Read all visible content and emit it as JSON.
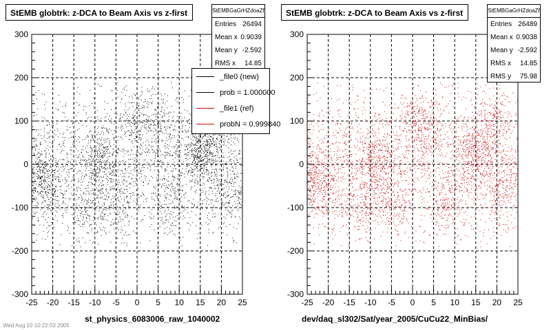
{
  "colors": {
    "ref": "#000000",
    "new": "#cc0000",
    "grid": "#000000",
    "frame": "#000000",
    "background": "#ffffff"
  },
  "panels": [
    {
      "title": "StEMB globtrk: z-DCA to Beam Axis vs z-first",
      "stats": {
        "name": "StEMBGaGrHZdoaZf",
        "rows": [
          {
            "label": "Entries",
            "value": "26494"
          },
          {
            "label": "Mean x",
            "value": "0.9039"
          },
          {
            "label": "Mean y",
            "value": "-2.592"
          },
          {
            "label": "RMS x",
            "value": "14.85"
          }
        ]
      },
      "legend": [
        {
          "label": "_file0 (new)",
          "color": "#000000"
        },
        {
          "label": "prob = 1.000000",
          "color": "#000000"
        },
        {
          "label": "_file1 (ref)",
          "color": "#cc0000"
        },
        {
          "label": "probN = 0.999840",
          "color": "#cc0000"
        }
      ],
      "xtitle": "st_physics_6083006_raw_1040002"
    },
    {
      "title": "StEMB globtrk: z-DCA to Beam Axis vs z-first",
      "stats": {
        "name": "StEMBGaGrHZdoaZf",
        "rows": [
          {
            "label": "Entries",
            "value": "26489"
          },
          {
            "label": "Mean x",
            "value": "0.9038"
          },
          {
            "label": "Mean y",
            "value": "-2.592"
          },
          {
            "label": "RMS x",
            "value": "14.85"
          },
          {
            "label": "RMS y",
            "value": "75.98"
          }
        ]
      },
      "xtitle": "dev/daq_sl302/Sat/year_2005/CuCu22_MinBias/"
    }
  ],
  "footer": "Wed Aug 10 10:22:03 2005",
  "chart_data": [
    {
      "type": "scatter",
      "title": "StEMB globtrk: z-DCA to Beam Axis vs z-first",
      "xlabel": "st_physics_6083006_raw_1040002",
      "ylabel": "",
      "xlim": [
        -25,
        25
      ],
      "ylim": [
        -300,
        300
      ],
      "xticks": [
        -25,
        -20,
        -15,
        -10,
        -5,
        0,
        5,
        10,
        15,
        20,
        25
      ],
      "yticks": [
        -300,
        -200,
        -100,
        0,
        100,
        200,
        300
      ],
      "grid": true,
      "series": [
        {
          "name": "_file0 (new)",
          "color": "#000000",
          "entries": 26494,
          "mean_x": 0.9039,
          "mean_y": -2.592,
          "rms_x": 14.85
        }
      ],
      "density_clusters": [
        {
          "x": -24,
          "y": -30,
          "weight": 0.12
        },
        {
          "x": -20,
          "y": -60,
          "weight": 0.06
        },
        {
          "x": -12,
          "y": -100,
          "weight": 0.06
        },
        {
          "x": -9,
          "y": 10,
          "weight": 0.1
        },
        {
          "x": -5,
          "y": -90,
          "weight": 0.06
        },
        {
          "x": 0,
          "y": 100,
          "weight": 0.07
        },
        {
          "x": 5,
          "y": 80,
          "weight": 0.06
        },
        {
          "x": 8,
          "y": -80,
          "weight": 0.06
        },
        {
          "x": 15,
          "y": 30,
          "weight": 0.16
        },
        {
          "x": 19,
          "y": 100,
          "weight": 0.08
        },
        {
          "x": 21,
          "y": -60,
          "weight": 0.07
        }
      ]
    },
    {
      "type": "scatter",
      "title": "StEMB globtrk: z-DCA to Beam Axis vs z-first",
      "xlabel": "dev/daq_sl302/Sat/year_2005/CuCu22_MinBias/",
      "ylabel": "",
      "xlim": [
        -25,
        25
      ],
      "ylim": [
        -300,
        300
      ],
      "xticks": [
        -25,
        -20,
        -15,
        -10,
        -5,
        0,
        5,
        10,
        15,
        20,
        25
      ],
      "yticks": [
        -300,
        -200,
        -100,
        0,
        100,
        200,
        300
      ],
      "grid": true,
      "series": [
        {
          "name": "_file1 (ref)",
          "color": "#cc0000",
          "entries": 26489,
          "mean_x": 0.9038,
          "mean_y": -2.592,
          "rms_x": 14.85,
          "rms_y": 75.98
        }
      ],
      "density_clusters": [
        {
          "x": -24,
          "y": -30,
          "weight": 0.12
        },
        {
          "x": -20,
          "y": -60,
          "weight": 0.06
        },
        {
          "x": -12,
          "y": -100,
          "weight": 0.06
        },
        {
          "x": -9,
          "y": 10,
          "weight": 0.1
        },
        {
          "x": -5,
          "y": -90,
          "weight": 0.06
        },
        {
          "x": 0,
          "y": 100,
          "weight": 0.07
        },
        {
          "x": 5,
          "y": 80,
          "weight": 0.06
        },
        {
          "x": 8,
          "y": -80,
          "weight": 0.06
        },
        {
          "x": 15,
          "y": 30,
          "weight": 0.16
        },
        {
          "x": 19,
          "y": 100,
          "weight": 0.08
        },
        {
          "x": 21,
          "y": -60,
          "weight": 0.07
        }
      ]
    }
  ]
}
